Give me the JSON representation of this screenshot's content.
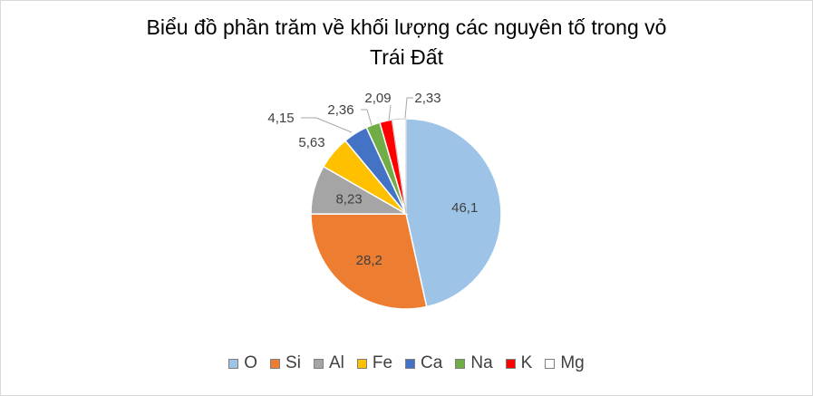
{
  "chart_data": {
    "type": "pie",
    "title_line1": "Biểu đồ phần trăm về khối lượng các nguyên tố trong vỏ",
    "title_line2": "Trái Đất",
    "labels": [
      "O",
      "Si",
      "Al",
      "Fe",
      "Ca",
      "Na",
      "K",
      "Mg"
    ],
    "values": [
      46.1,
      28.2,
      8.23,
      5.63,
      4.15,
      2.36,
      2.09,
      2.33
    ],
    "value_labels": [
      "46,1",
      "28,2",
      "8,23",
      "5,63",
      "4,15",
      "2,36",
      "2,09",
      "2,33"
    ],
    "colors": [
      "#9dc3e6",
      "#ed7d31",
      "#a5a5a5",
      "#ffc000",
      "#4472c4",
      "#70ad47",
      "#ff0000",
      "#ffffff"
    ],
    "legend_position": "bottom"
  }
}
